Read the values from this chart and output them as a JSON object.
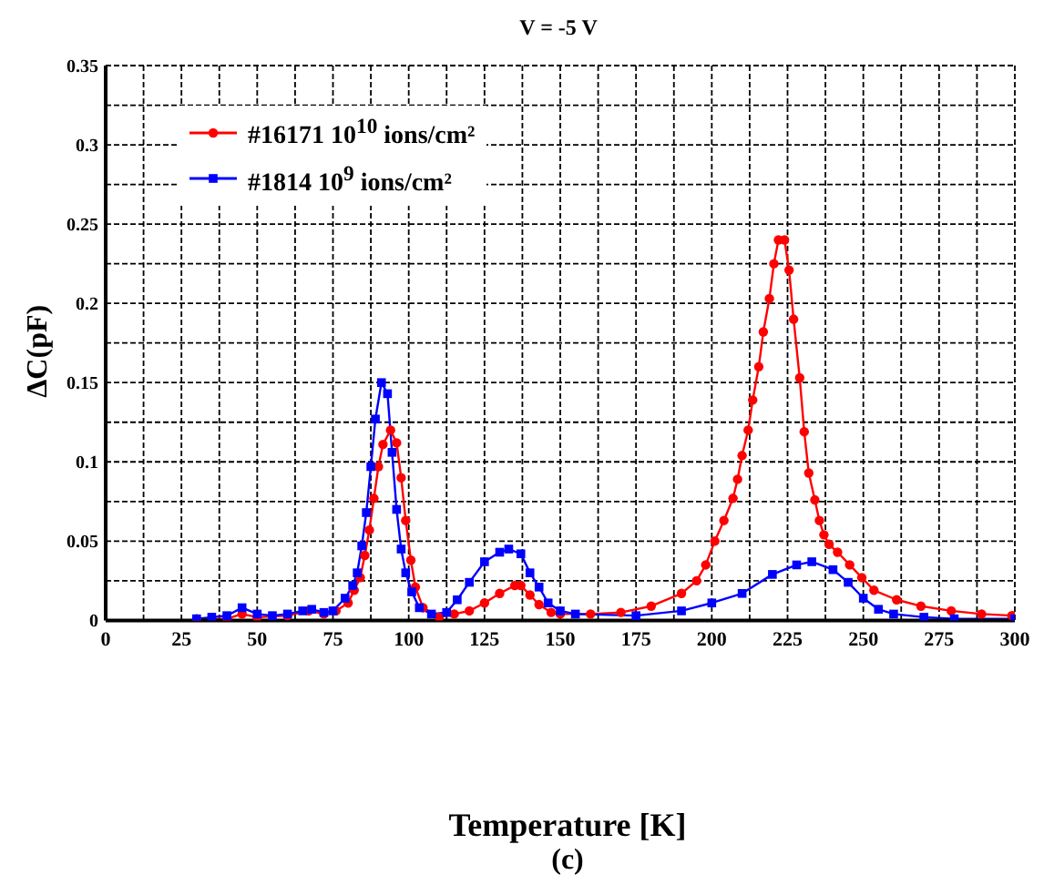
{
  "chart_data": {
    "type": "line",
    "title": "V = -5 V",
    "xlabel": "Temperature [K]",
    "ylabel": "ΔC(pF)",
    "annotations": [
      "(c)"
    ],
    "xlim": [
      0,
      300
    ],
    "ylim": [
      0,
      0.35
    ],
    "xticks": [
      0,
      {
        "value": 12.5,
        "label": null
      },
      25,
      {
        "value": 37.5,
        "label": null
      },
      50,
      {
        "value": 62.5,
        "label": null
      },
      75,
      {
        "value": 87.5,
        "label": null
      },
      100,
      {
        "value": 112.5,
        "label": null
      },
      125,
      {
        "value": 137.5,
        "label": null
      },
      150,
      {
        "value": 162.5,
        "label": null
      },
      175,
      {
        "value": 187.5,
        "label": null
      },
      200,
      {
        "value": 212.5,
        "label": null
      },
      225,
      {
        "value": 237.5,
        "label": null
      },
      250,
      {
        "value": 262.5,
        "label": null
      },
      275,
      {
        "value": 287.5,
        "label": null
      },
      300
    ],
    "yticks": [
      0,
      {
        "value": 0.025,
        "label": null
      },
      0.05,
      {
        "value": 0.075,
        "label": null
      },
      0.1,
      {
        "value": 0.125,
        "label": null
      },
      0.15,
      {
        "value": 0.175,
        "label": null
      },
      0.2,
      {
        "value": 0.225,
        "label": null
      },
      0.25,
      {
        "value": 0.275,
        "label": null
      },
      0.3,
      {
        "value": 0.325,
        "label": null
      },
      0.35
    ],
    "grid": true,
    "legend": "top left",
    "line_style": "solid",
    "series": [
      {
        "name": "#16171 10$^{10}$ ions/cm²",
        "color": "#ff0000",
        "marker": "circle",
        "x": [
          30,
          40,
          45,
          50,
          60,
          67,
          72,
          76,
          80,
          82,
          84,
          85.5,
          87,
          88.5,
          90,
          91.5,
          94,
          96,
          97.5,
          99,
          100.7,
          102.2,
          104.7,
          110,
          115,
          120,
          125,
          130,
          135,
          137,
          140,
          143,
          147,
          150,
          160,
          170,
          180,
          190,
          195,
          198,
          201,
          204,
          207,
          208.5,
          210,
          212,
          213.5,
          215.5,
          217,
          219,
          220.5,
          222,
          224,
          225.5,
          227,
          229,
          230.5,
          232,
          234,
          235.5,
          237,
          238.7,
          241.5,
          245.5,
          249.5,
          253.5,
          261,
          269,
          279,
          289,
          299
        ],
        "values": [
          0.001,
          0.001,
          0.004,
          0.002,
          0.003,
          0.006,
          0.004,
          0.006,
          0.011,
          0.019,
          0.027,
          0.041,
          0.057,
          0.077,
          0.097,
          0.111,
          0.12,
          0.112,
          0.09,
          0.063,
          0.038,
          0.021,
          0.008,
          0.002,
          0.004,
          0.006,
          0.011,
          0.017,
          0.022,
          0.022,
          0.016,
          0.01,
          0.005,
          0.004,
          0.004,
          0.005,
          0.009,
          0.017,
          0.025,
          0.035,
          0.05,
          0.063,
          0.077,
          0.089,
          0.104,
          0.12,
          0.139,
          0.16,
          0.182,
          0.203,
          0.225,
          0.24,
          0.24,
          0.221,
          0.19,
          0.153,
          0.119,
          0.093,
          0.076,
          0.063,
          0.054,
          0.048,
          0.043,
          0.035,
          0.027,
          0.019,
          0.013,
          0.009,
          0.006,
          0.004,
          0.003
        ]
      },
      {
        "name": "#1814 10$^{9}$ ions/cm²",
        "color": "#0000ff",
        "marker": "square",
        "x": [
          30,
          35,
          40,
          45,
          50,
          55,
          60,
          65,
          68,
          72,
          75,
          79,
          81.5,
          83,
          84.5,
          86,
          87.5,
          89,
          91,
          93,
          94.5,
          96,
          97.5,
          99,
          101,
          103.5,
          107.5,
          112.5,
          116,
          120,
          125,
          130,
          133,
          137,
          140,
          143,
          146,
          150,
          155,
          175,
          190,
          200,
          210,
          220,
          228,
          233,
          240,
          245,
          250,
          255,
          260,
          270,
          280,
          300
        ],
        "values": [
          0.001,
          0.002,
          0.003,
          0.008,
          0.004,
          0.003,
          0.004,
          0.006,
          0.007,
          0.005,
          0.006,
          0.014,
          0.022,
          0.03,
          0.047,
          0.068,
          0.097,
          0.127,
          0.15,
          0.143,
          0.106,
          0.07,
          0.045,
          0.03,
          0.018,
          0.008,
          0.004,
          0.005,
          0.013,
          0.024,
          0.037,
          0.043,
          0.045,
          0.042,
          0.03,
          0.021,
          0.011,
          0.006,
          0.004,
          0.003,
          0.006,
          0.011,
          0.017,
          0.029,
          0.035,
          0.037,
          0.032,
          0.024,
          0.014,
          0.007,
          0.004,
          0.002,
          0.001,
          0.001
        ]
      }
    ]
  }
}
